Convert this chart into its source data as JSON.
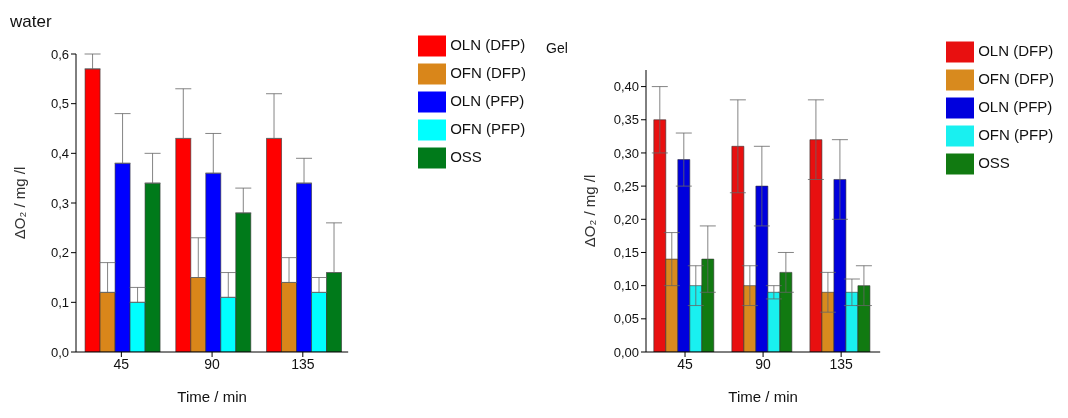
{
  "chart_data": [
    {
      "type": "bar",
      "title": "water",
      "xlabel": "Time / min",
      "ylabel": "ΔO₂ / mg /l",
      "categories": [
        "45",
        "90",
        "135"
      ],
      "legend": "top right",
      "ylim": [
        0,
        0.6
      ],
      "yticks": [
        {
          "value": 0,
          "label": "0,0"
        },
        {
          "value": 0.1,
          "label": "0,1"
        },
        {
          "value": 0.2,
          "label": "0,2"
        },
        {
          "value": 0.3,
          "label": "0,3"
        },
        {
          "value": 0.4,
          "label": "0,4"
        },
        {
          "value": 0.5,
          "label": "0,5"
        },
        {
          "value": 0.6,
          "label": "0,6"
        }
      ],
      "series": [
        {
          "name": "OLN (DFP)",
          "color": "#ff0000",
          "values": [
            0.57,
            0.43,
            0.43
          ],
          "errors": [
            [
              0.57,
              0.6
            ],
            [
              0.43,
              0.53
            ],
            [
              0.43,
              0.52
            ]
          ]
        },
        {
          "name": "OFN (DFP)",
          "color": "#d9861a",
          "values": [
            0.12,
            0.15,
            0.14
          ],
          "errors": [
            [
              0.12,
              0.18
            ],
            [
              0.15,
              0.23
            ],
            [
              0.14,
              0.19
            ]
          ]
        },
        {
          "name": "OLN (PFP)",
          "color": "#0000ff",
          "values": [
            0.38,
            0.36,
            0.34
          ],
          "errors": [
            [
              0.38,
              0.48
            ],
            [
              0.36,
              0.44
            ],
            [
              0.34,
              0.39
            ]
          ]
        },
        {
          "name": "OFN (PFP)",
          "color": "#00ffff",
          "values": [
            0.1,
            0.11,
            0.12
          ],
          "errors": [
            [
              0.1,
              0.13
            ],
            [
              0.11,
              0.16
            ],
            [
              0.12,
              0.15
            ]
          ]
        },
        {
          "name": "OSS",
          "color": "#007a1a",
          "values": [
            0.34,
            0.28,
            0.16
          ],
          "errors": [
            [
              0.34,
              0.4
            ],
            [
              0.28,
              0.33
            ],
            [
              0.16,
              0.26
            ]
          ]
        }
      ]
    },
    {
      "type": "bar",
      "title": "Gel",
      "xlabel": "Time / min",
      "ylabel": "ΔO₂ / mg /l",
      "categories": [
        "45",
        "90",
        "135"
      ],
      "legend": "top right",
      "ylim": [
        0,
        0.425
      ],
      "yticks": [
        {
          "value": 0,
          "label": "0,00"
        },
        {
          "value": 0.05,
          "label": "0,05"
        },
        {
          "value": 0.1,
          "label": "0,10"
        },
        {
          "value": 0.15,
          "label": "0,15"
        },
        {
          "value": 0.2,
          "label": "0,20"
        },
        {
          "value": 0.25,
          "label": "0,25"
        },
        {
          "value": 0.3,
          "label": "0,30"
        },
        {
          "value": 0.35,
          "label": "0,35"
        },
        {
          "value": 0.4,
          "label": "0,40"
        }
      ],
      "series": [
        {
          "name": "OLN (DFP)",
          "color": "#e81010",
          "values": [
            0.35,
            0.31,
            0.32
          ],
          "errors": [
            0.05,
            0.07,
            0.06
          ]
        },
        {
          "name": "OFN (DFP)",
          "color": "#d88a1e",
          "values": [
            0.14,
            0.1,
            0.09
          ],
          "errors": [
            0.04,
            0.03,
            0.03
          ]
        },
        {
          "name": "OLN (PFP)",
          "color": "#0000dd",
          "values": [
            0.29,
            0.25,
            0.26
          ],
          "errors": [
            0.04,
            0.06,
            0.06
          ]
        },
        {
          "name": "OFN (PFP)",
          "color": "#19f0f0",
          "values": [
            0.1,
            0.09,
            0.09
          ],
          "errors": [
            0.03,
            0.01,
            0.02
          ]
        },
        {
          "name": "OSS",
          "color": "#117a11",
          "values": [
            0.14,
            0.12,
            0.1
          ],
          "errors": [
            0.05,
            0.03,
            0.03
          ]
        }
      ]
    }
  ]
}
